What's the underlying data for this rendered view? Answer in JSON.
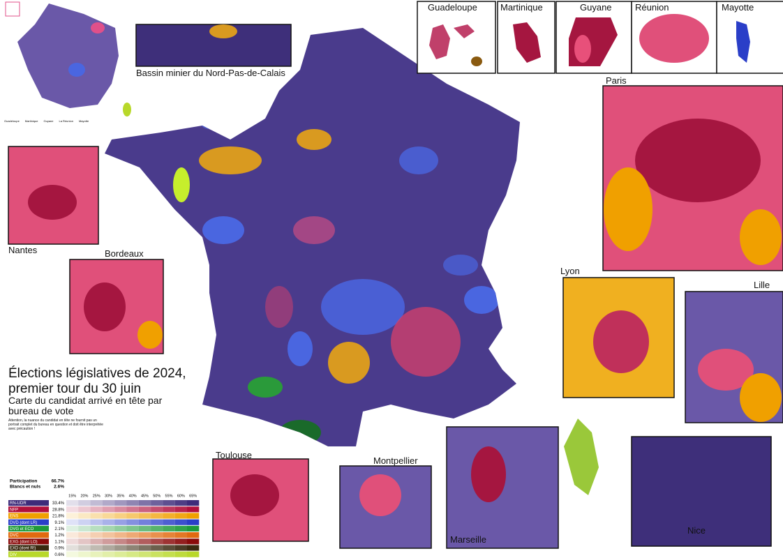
{
  "inset_labels": {
    "basin": "Bassin minier du Nord-Pas-de-Calais",
    "guadeloupe": "Guadeloupe",
    "martinique": "Martinique",
    "guyane": "Guyane",
    "reunion": "Réunion",
    "mayotte": "Mayotte",
    "paris": "Paris",
    "nantes": "Nantes",
    "bordeaux": "Bordeaux",
    "lyon": "Lyon",
    "lille": "Lille",
    "toulouse": "Toulouse",
    "montpellier": "Montpellier",
    "marseille": "Marseille",
    "nice": "Nice"
  },
  "mini_labels": [
    "Guadeloupe",
    "Martinique",
    "Guyane",
    "La Réunion",
    "Mayotte"
  ],
  "title_lines": [
    "Élections législatives de 2024,",
    "premier tour du 30 juin"
  ],
  "subtitle": "Carte du candidat arrivé en tête par bureau de vote",
  "note": "Attention, la nuance du candidat en tête ne fournit pas un portrait complet du bureau en question et doit être interprétée avec précaution !",
  "legend": {
    "participation": {
      "label": "Participation",
      "value": "66.7%"
    },
    "blank": {
      "label": "Blancs et nuls",
      "value": "2.6%"
    },
    "scale": [
      "15%",
      "20%",
      "25%",
      "30%",
      "35%",
      "40%",
      "45%",
      "50%",
      "55%",
      "60%",
      "65%"
    ],
    "rows": [
      {
        "name": "RN-UDR",
        "value": "33.4%",
        "color": "#3d2b7a"
      },
      {
        "name": "NFP",
        "value": "28.8%",
        "color": "#b0103c"
      },
      {
        "name": "ENS",
        "value": "21.8%",
        "color": "#f0a000"
      },
      {
        "name": "DVD (dont LR)",
        "value": "9.1%",
        "color": "#2a3ec8"
      },
      {
        "name": "DVG et ECO",
        "value": "2.1%",
        "color": "#1f9a3a"
      },
      {
        "name": "DVC",
        "value": "1.2%",
        "color": "#e06a10"
      },
      {
        "name": "EXG (dont LO)",
        "value": "1.1%",
        "color": "#8a0a0a"
      },
      {
        "name": "EXD (dont R!)",
        "value": "0.9%",
        "color": "#3a2a10"
      },
      {
        "name": "DIV",
        "value": "0.6%",
        "color": "#b8d82a"
      }
    ]
  }
}
